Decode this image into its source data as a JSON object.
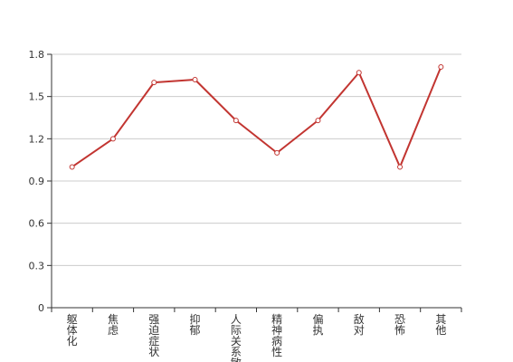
{
  "chart_data": {
    "type": "line",
    "categories": [
      "躯体化",
      "焦虑",
      "强迫症状",
      "抑郁",
      "人际关系敏感",
      "精神病性",
      "偏执",
      "敌对",
      "恐怖",
      "其他"
    ],
    "series": [
      {
        "values": [
          1.0,
          1.2,
          1.6,
          1.62,
          1.33,
          1.1,
          1.33,
          1.67,
          1.0,
          1.71
        ]
      }
    ],
    "ylim": [
      0,
      1.8
    ],
    "yticks": [
      "0",
      "0.3",
      "0.6",
      "0.9",
      "1.2",
      "1.5",
      "1.8"
    ],
    "grid": true,
    "colors": {
      "line": "#c23531",
      "grid": "#cccccc",
      "axis": "#333333"
    }
  }
}
